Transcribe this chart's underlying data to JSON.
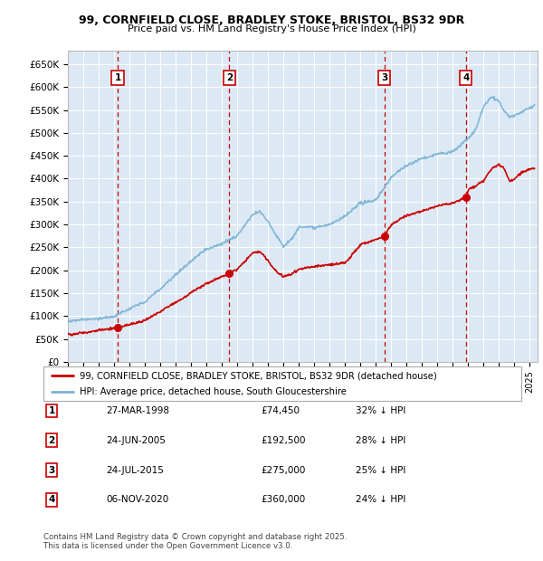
{
  "title_line1": "99, CORNFIELD CLOSE, BRADLEY STOKE, BRISTOL, BS32 9DR",
  "title_line2": "Price paid vs. HM Land Registry's House Price Index (HPI)",
  "background_color": "#ffffff",
  "plot_bg_color": "#dce9f5",
  "grid_color": "#ffffff",
  "hpi_color": "#7ab3d4",
  "price_color": "#cc0000",
  "vline_color": "#cc0000",
  "ylim": [
    0,
    680000
  ],
  "yticks": [
    0,
    50000,
    100000,
    150000,
    200000,
    250000,
    300000,
    350000,
    400000,
    450000,
    500000,
    550000,
    600000,
    650000
  ],
  "ytick_labels": [
    "£0",
    "£50K",
    "£100K",
    "£150K",
    "£200K",
    "£250K",
    "£300K",
    "£350K",
    "£400K",
    "£450K",
    "£500K",
    "£550K",
    "£600K",
    "£650K"
  ],
  "xlim_start": 1995.0,
  "xlim_end": 2025.5,
  "transactions": [
    {
      "num": 1,
      "date": "27-MAR-1998",
      "price": 74450,
      "year": 1998.23,
      "pct": "32%",
      "label": "1"
    },
    {
      "num": 2,
      "date": "24-JUN-2005",
      "price": 192500,
      "year": 2005.48,
      "pct": "28%",
      "label": "2"
    },
    {
      "num": 3,
      "date": "24-JUL-2015",
      "price": 275000,
      "year": 2015.56,
      "pct": "25%",
      "label": "3"
    },
    {
      "num": 4,
      "date": "06-NOV-2020",
      "price": 360000,
      "year": 2020.85,
      "pct": "24%",
      "label": "4"
    }
  ],
  "legend_line1": "99, CORNFIELD CLOSE, BRADLEY STOKE, BRISTOL, BS32 9DR (detached house)",
  "legend_line2": "HPI: Average price, detached house, South Gloucestershire",
  "footer_line1": "Contains HM Land Registry data © Crown copyright and database right 2025.",
  "footer_line2": "This data is licensed under the Open Government Licence v3.0."
}
